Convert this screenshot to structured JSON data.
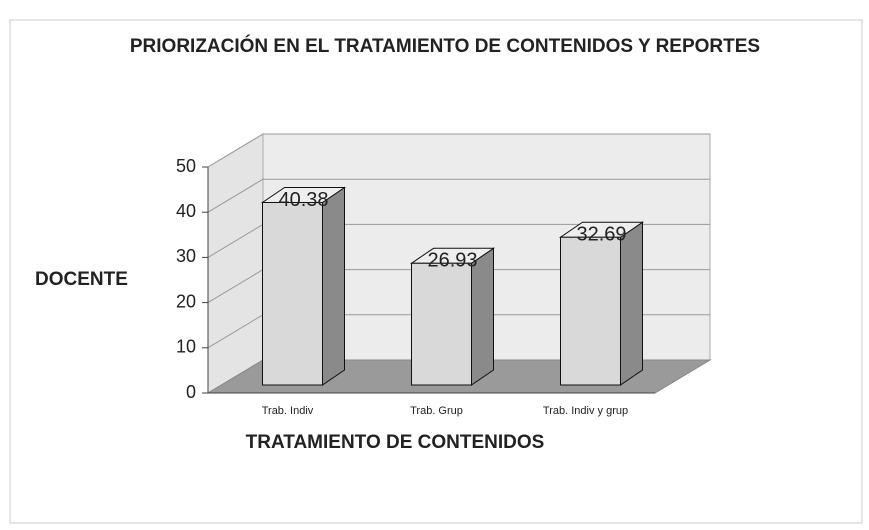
{
  "chart_data": {
    "type": "bar3d",
    "title": "PRIORIZACIÓN EN EL TRATAMIENTO DE CONTENIDOS Y REPORTES",
    "ylabel": "DOCENTE",
    "xlabel": "TRATAMIENTO DE CONTENIDOS",
    "categories": [
      "Trab. Indiv",
      "Trab. Grup",
      "Trab. Indiv y grup"
    ],
    "values": [
      40.38,
      26.93,
      32.69
    ],
    "color": "#d9d9d9",
    "ylim": [
      0,
      50
    ],
    "yticks": [
      0,
      10,
      20,
      30,
      40,
      50
    ],
    "grid": true
  }
}
